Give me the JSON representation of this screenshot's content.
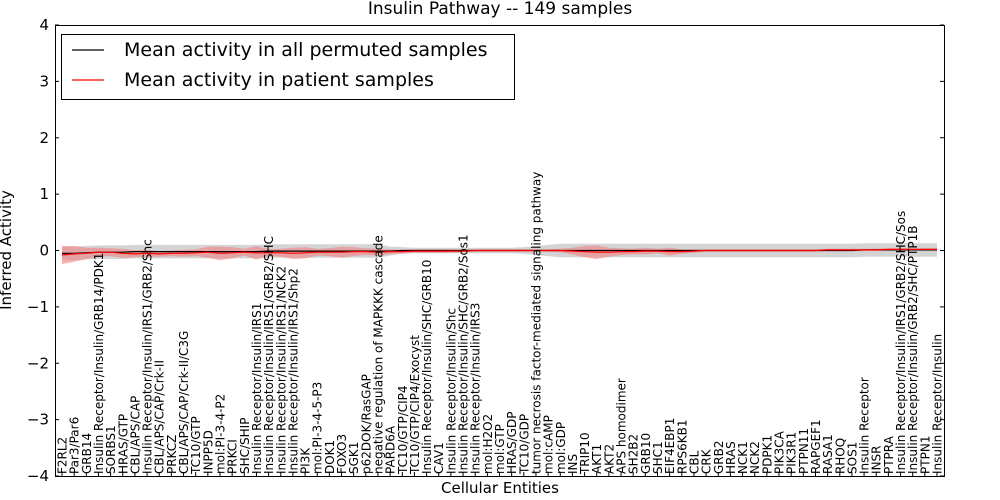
{
  "chart_data": {
    "type": "line",
    "title": "Insulin Pathway -- 149 samples",
    "xlabel": "Cellular Entities",
    "ylabel": "Inferred Activity",
    "ylim": [
      -4,
      4
    ],
    "yticks": [
      -4,
      -3,
      -2,
      -1,
      0,
      1,
      2,
      3,
      4
    ],
    "ytick_labels": [
      "−4",
      "−3",
      "−2",
      "−1",
      "0",
      "1",
      "2",
      "3",
      "4"
    ],
    "legend_position": "top-left",
    "categories": [
      "F2RL2",
      "Par3/Par6",
      "GRB14",
      "Insulin Receptor/Insulin/GRB14/PDK1",
      "SORBS1",
      "HRAS/GTP",
      "CBL/APS/CAP",
      "Insulin Receptor/Insulin/IRS1/GRB2/Shc",
      "CBL/APS/CAP/Crk-II",
      "PRKCZ",
      "CBL/APS/CAP/Crk-II/C3G",
      "TC10/GTP",
      "INPP5D",
      "mol:PI-3-4-P2",
      "PRKCI",
      "SHC/SHIP",
      "Insulin Receptor/Insulin/IRS1",
      "Insulin Receptor/Insulin/IRS1/GRB2/SHC",
      "Insulin Receptor/Insulin/IRS1/NCK2",
      "Insulin Receptor/Insulin/IRS1/Shp2",
      "PI3K",
      "mol:PI-3-4-5-P3",
      "DOK1",
      "FOXO3",
      "SGK1",
      "p62DOK/RasGAP",
      "negative regulation of MAPKKK cascade",
      "PARD6A",
      "TC10/GTP/CIP4",
      "TC10/GTP/CIP4/Exocyst",
      "Insulin Receptor/Insulin/SHC/GRB10",
      "CAV1",
      "Insulin Receptor/Insulin/Shc",
      "Insulin Receptor/Insulin/SHC/GRB2/Sos1",
      "Insulin Receptor/Insulin/IRS3",
      "mol:H2O2",
      "mol:GTP",
      "HRAS/GDP",
      "TC10/GDP",
      "tumor necrosis factor-mediated signaling pathway",
      "mol:cAMP",
      "mol:GDP",
      "INS",
      "TRIP10",
      "AKT1",
      "AKT2",
      "APS homodimer",
      "SH2B2",
      "GRB10",
      "SHC1",
      "EIF4EBP1",
      "RPS6KB1",
      "CBL",
      "CRK",
      "GRB2",
      "HRAS",
      "NCK1",
      "NCK2",
      "PDPK1",
      "PIK3CA",
      "PIK3R1",
      "PTPN11",
      "RAPGEF1",
      "RASA1",
      "RHOQ",
      "SOS1",
      "Insulin Receptor",
      "INSR",
      "PTPRA",
      "Insulin Receptor/Insulin/IRS1/GRB2/SHC/Sos",
      "Insulin Receptor/Insulin/GRB2/SHC/PTP1B",
      "PTPN1",
      "Insulin Receptor/Insulin"
    ],
    "series": [
      {
        "name": "Mean activity in all permuted samples",
        "color": "#000000",
        "band_color": "#b0b0b0",
        "values": [
          -0.05,
          -0.05,
          -0.04,
          -0.03,
          -0.03,
          -0.03,
          -0.02,
          -0.02,
          -0.02,
          -0.02,
          -0.02,
          -0.02,
          -0.02,
          -0.02,
          -0.02,
          -0.02,
          -0.02,
          -0.01,
          -0.01,
          -0.01,
          -0.01,
          -0.01,
          -0.01,
          -0.01,
          -0.01,
          -0.01,
          -0.01,
          -0.01,
          0.0,
          0.0,
          0.0,
          0.0,
          0.0,
          0.0,
          0.0,
          0.0,
          0.0,
          0.0,
          0.0,
          0.0,
          0.0,
          0.0,
          0.0,
          0.0,
          0.0,
          0.0,
          0.0,
          0.0,
          0.0,
          0.0,
          0.0,
          0.0,
          0.0,
          0.0,
          0.0,
          0.0,
          0.0,
          0.0,
          0.0,
          0.0,
          0.0,
          0.0,
          0.0,
          0.0,
          0.0,
          0.0,
          0.01,
          0.01,
          0.01,
          0.01,
          0.01,
          0.01,
          0.01
        ],
        "band_halfwidth": [
          0.12,
          0.12,
          0.12,
          0.12,
          0.12,
          0.12,
          0.12,
          0.12,
          0.12,
          0.12,
          0.12,
          0.12,
          0.12,
          0.12,
          0.12,
          0.12,
          0.12,
          0.12,
          0.12,
          0.12,
          0.12,
          0.12,
          0.12,
          0.12,
          0.12,
          0.12,
          0.12,
          0.08,
          0.06,
          0.05,
          0.05,
          0.05,
          0.05,
          0.05,
          0.05,
          0.05,
          0.05,
          0.05,
          0.06,
          0.08,
          0.1,
          0.12,
          0.12,
          0.12,
          0.12,
          0.12,
          0.12,
          0.12,
          0.12,
          0.12,
          0.12,
          0.12,
          0.12,
          0.12,
          0.12,
          0.12,
          0.12,
          0.12,
          0.12,
          0.12,
          0.12,
          0.12,
          0.12,
          0.12,
          0.12,
          0.12,
          0.12,
          0.12,
          0.12,
          0.12,
          0.12,
          0.12,
          0.12
        ]
      },
      {
        "name": "Mean activity in patient samples",
        "color": "#ff0000",
        "band_color": "#f08080",
        "values": [
          -0.08,
          -0.06,
          -0.05,
          -0.03,
          -0.03,
          -0.05,
          -0.06,
          -0.05,
          -0.06,
          -0.05,
          -0.05,
          -0.04,
          -0.03,
          -0.05,
          -0.04,
          -0.03,
          -0.04,
          -0.04,
          -0.04,
          -0.05,
          -0.04,
          -0.03,
          -0.03,
          -0.03,
          -0.02,
          -0.02,
          -0.03,
          -0.02,
          -0.02,
          -0.01,
          -0.01,
          -0.01,
          -0.01,
          -0.01,
          0.0,
          0.0,
          0.0,
          0.0,
          0.0,
          0.0,
          0.0,
          0.0,
          -0.01,
          -0.02,
          -0.03,
          -0.03,
          -0.02,
          -0.02,
          -0.01,
          -0.01,
          -0.02,
          -0.02,
          -0.01,
          0.0,
          0.0,
          0.0,
          0.0,
          0.0,
          0.0,
          0.0,
          0.0,
          0.0,
          0.0,
          0.01,
          0.01,
          0.01,
          0.01,
          0.01,
          0.02,
          0.02,
          0.02,
          0.02,
          0.02
        ],
        "band_halfwidth": [
          0.16,
          0.14,
          0.1,
          0.08,
          0.07,
          0.08,
          0.06,
          0.06,
          0.05,
          0.05,
          0.06,
          0.06,
          0.1,
          0.12,
          0.1,
          0.06,
          0.12,
          0.06,
          0.07,
          0.1,
          0.1,
          0.06,
          0.07,
          0.1,
          0.08,
          0.06,
          0.06,
          0.04,
          0.03,
          0.03,
          0.03,
          0.03,
          0.03,
          0.02,
          0.02,
          0.02,
          0.02,
          0.02,
          0.02,
          0.02,
          0.02,
          0.03,
          0.06,
          0.1,
          0.12,
          0.08,
          0.06,
          0.05,
          0.06,
          0.04,
          0.07,
          0.04,
          0.03,
          0.02,
          0.02,
          0.02,
          0.02,
          0.02,
          0.02,
          0.02,
          0.02,
          0.02,
          0.02,
          0.02,
          0.02,
          0.02,
          0.02,
          0.02,
          0.02,
          0.02,
          0.02,
          0.02,
          0.02
        ]
      }
    ]
  }
}
